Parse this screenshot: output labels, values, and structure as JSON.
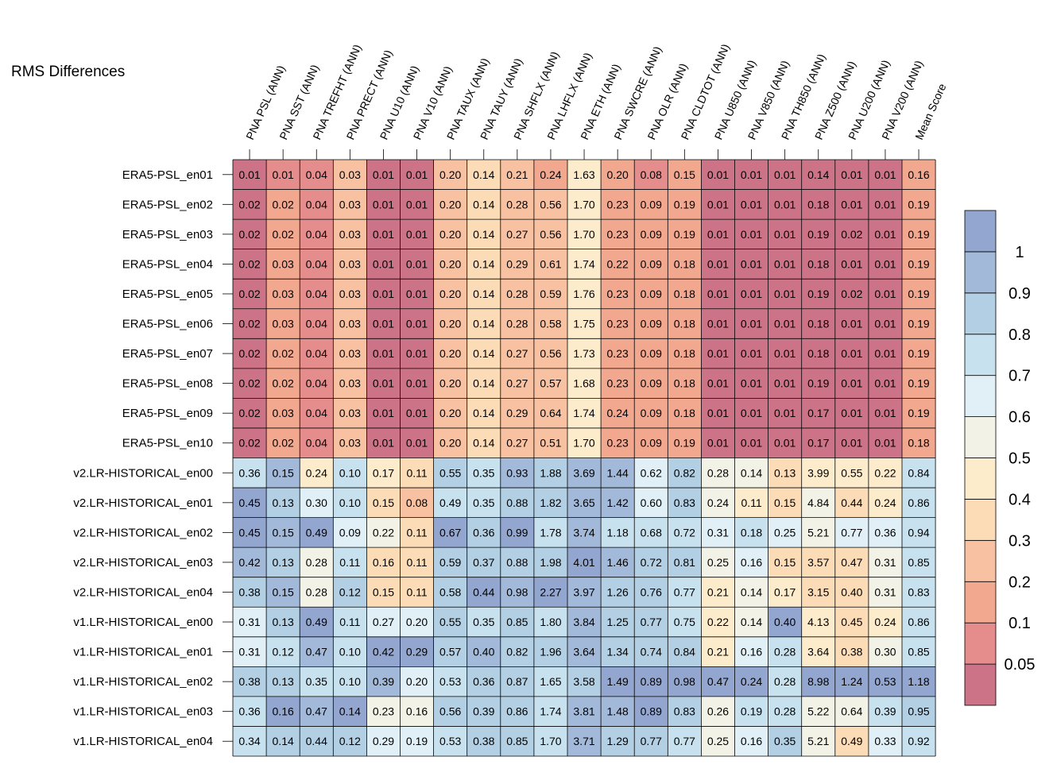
{
  "chart_data": {
    "type": "heatmap",
    "title": "RMS Differences",
    "columns": [
      "PNA PSL (ANN)",
      "PNA SST (ANN)",
      "PNA TREFHT (ANN)",
      "PNA PRECT (ANN)",
      "PNA U10 (ANN)",
      "PNA V10 (ANN)",
      "PNA TAUX (ANN)",
      "PNA TAUY (ANN)",
      "PNA SHFLX (ANN)",
      "PNA LHFLX (ANN)",
      "PNA ETH (ANN)",
      "PNA SWCRE (ANN)",
      "PNA OLR (ANN)",
      "PNA CLDTOT (ANN)",
      "PNA U850 (ANN)",
      "PNA V850 (ANN)",
      "PNA TH850 (ANN)",
      "PNA Z500 (ANN)",
      "PNA U200 (ANN)",
      "PNA V200 (ANN)",
      "Mean Score"
    ],
    "rows": [
      "ERA5-PSL_en01",
      "ERA5-PSL_en02",
      "ERA5-PSL_en03",
      "ERA5-PSL_en04",
      "ERA5-PSL_en05",
      "ERA5-PSL_en06",
      "ERA5-PSL_en07",
      "ERA5-PSL_en08",
      "ERA5-PSL_en09",
      "ERA5-PSL_en10",
      "v2.LR-HISTORICAL_en00",
      "v2.LR-HISTORICAL_en01",
      "v2.LR-HISTORICAL_en02",
      "v2.LR-HISTORICAL_en03",
      "v2.LR-HISTORICAL_en04",
      "v1.LR-HISTORICAL_en00",
      "v1.LR-HISTORICAL_en01",
      "v1.LR-HISTORICAL_en02",
      "v1.LR-HISTORICAL_en03",
      "v1.LR-HISTORICAL_en04"
    ],
    "values": [
      [
        "0.01",
        "0.01",
        "0.04",
        "0.03",
        "0.01",
        "0.01",
        "0.20",
        "0.14",
        "0.21",
        "0.24",
        "1.63",
        "0.20",
        "0.08",
        "0.15",
        "0.01",
        "0.01",
        "0.01",
        "0.14",
        "0.01",
        "0.01",
        "0.16"
      ],
      [
        "0.02",
        "0.02",
        "0.04",
        "0.03",
        "0.01",
        "0.01",
        "0.20",
        "0.14",
        "0.28",
        "0.56",
        "1.70",
        "0.23",
        "0.09",
        "0.19",
        "0.01",
        "0.01",
        "0.01",
        "0.18",
        "0.01",
        "0.01",
        "0.19"
      ],
      [
        "0.02",
        "0.02",
        "0.04",
        "0.03",
        "0.01",
        "0.01",
        "0.20",
        "0.14",
        "0.27",
        "0.56",
        "1.70",
        "0.23",
        "0.09",
        "0.19",
        "0.01",
        "0.01",
        "0.01",
        "0.19",
        "0.02",
        "0.01",
        "0.19"
      ],
      [
        "0.02",
        "0.03",
        "0.04",
        "0.03",
        "0.01",
        "0.01",
        "0.20",
        "0.14",
        "0.29",
        "0.61",
        "1.74",
        "0.22",
        "0.09",
        "0.18",
        "0.01",
        "0.01",
        "0.01",
        "0.18",
        "0.01",
        "0.01",
        "0.19"
      ],
      [
        "0.02",
        "0.03",
        "0.04",
        "0.03",
        "0.01",
        "0.01",
        "0.20",
        "0.14",
        "0.28",
        "0.59",
        "1.76",
        "0.23",
        "0.09",
        "0.18",
        "0.01",
        "0.01",
        "0.01",
        "0.19",
        "0.02",
        "0.01",
        "0.19"
      ],
      [
        "0.02",
        "0.03",
        "0.04",
        "0.03",
        "0.01",
        "0.01",
        "0.20",
        "0.14",
        "0.28",
        "0.58",
        "1.75",
        "0.23",
        "0.09",
        "0.18",
        "0.01",
        "0.01",
        "0.01",
        "0.18",
        "0.01",
        "0.01",
        "0.19"
      ],
      [
        "0.02",
        "0.02",
        "0.04",
        "0.03",
        "0.01",
        "0.01",
        "0.20",
        "0.14",
        "0.27",
        "0.56",
        "1.73",
        "0.23",
        "0.09",
        "0.18",
        "0.01",
        "0.01",
        "0.01",
        "0.18",
        "0.01",
        "0.01",
        "0.19"
      ],
      [
        "0.02",
        "0.02",
        "0.04",
        "0.03",
        "0.01",
        "0.01",
        "0.20",
        "0.14",
        "0.27",
        "0.57",
        "1.68",
        "0.23",
        "0.09",
        "0.18",
        "0.01",
        "0.01",
        "0.01",
        "0.19",
        "0.01",
        "0.01",
        "0.19"
      ],
      [
        "0.02",
        "0.03",
        "0.04",
        "0.03",
        "0.01",
        "0.01",
        "0.20",
        "0.14",
        "0.29",
        "0.64",
        "1.74",
        "0.24",
        "0.09",
        "0.18",
        "0.01",
        "0.01",
        "0.01",
        "0.17",
        "0.01",
        "0.01",
        "0.19"
      ],
      [
        "0.02",
        "0.02",
        "0.04",
        "0.03",
        "0.01",
        "0.01",
        "0.20",
        "0.14",
        "0.27",
        "0.51",
        "1.70",
        "0.23",
        "0.09",
        "0.19",
        "0.01",
        "0.01",
        "0.01",
        "0.17",
        "0.01",
        "0.01",
        "0.18"
      ],
      [
        "0.36",
        "0.15",
        "0.24",
        "0.10",
        "0.17",
        "0.11",
        "0.55",
        "0.35",
        "0.93",
        "1.88",
        "3.69",
        "1.44",
        "0.62",
        "0.82",
        "0.28",
        "0.14",
        "0.13",
        "3.99",
        "0.55",
        "0.22",
        "0.84"
      ],
      [
        "0.45",
        "0.13",
        "0.30",
        "0.10",
        "0.15",
        "0.08",
        "0.49",
        "0.35",
        "0.88",
        "1.82",
        "3.65",
        "1.42",
        "0.60",
        "0.83",
        "0.24",
        "0.11",
        "0.15",
        "4.84",
        "0.44",
        "0.24",
        "0.86"
      ],
      [
        "0.45",
        "0.15",
        "0.49",
        "0.09",
        "0.22",
        "0.11",
        "0.67",
        "0.36",
        "0.99",
        "1.78",
        "3.74",
        "1.18",
        "0.68",
        "0.72",
        "0.31",
        "0.18",
        "0.25",
        "5.21",
        "0.77",
        "0.36",
        "0.94"
      ],
      [
        "0.42",
        "0.13",
        "0.28",
        "0.11",
        "0.16",
        "0.11",
        "0.59",
        "0.37",
        "0.88",
        "1.98",
        "4.01",
        "1.46",
        "0.72",
        "0.81",
        "0.25",
        "0.16",
        "0.15",
        "3.57",
        "0.47",
        "0.31",
        "0.85"
      ],
      [
        "0.38",
        "0.15",
        "0.28",
        "0.12",
        "0.15",
        "0.11",
        "0.58",
        "0.44",
        "0.98",
        "2.27",
        "3.97",
        "1.26",
        "0.76",
        "0.77",
        "0.21",
        "0.14",
        "0.17",
        "3.15",
        "0.40",
        "0.31",
        "0.83"
      ],
      [
        "0.31",
        "0.13",
        "0.49",
        "0.11",
        "0.27",
        "0.20",
        "0.55",
        "0.35",
        "0.85",
        "1.80",
        "3.84",
        "1.25",
        "0.77",
        "0.75",
        "0.22",
        "0.14",
        "0.40",
        "4.13",
        "0.45",
        "0.24",
        "0.86"
      ],
      [
        "0.31",
        "0.12",
        "0.47",
        "0.10",
        "0.42",
        "0.29",
        "0.57",
        "0.40",
        "0.82",
        "1.96",
        "3.64",
        "1.34",
        "0.74",
        "0.84",
        "0.21",
        "0.16",
        "0.28",
        "3.64",
        "0.38",
        "0.30",
        "0.85"
      ],
      [
        "0.38",
        "0.13",
        "0.35",
        "0.10",
        "0.39",
        "0.20",
        "0.53",
        "0.36",
        "0.87",
        "1.65",
        "3.58",
        "1.49",
        "0.89",
        "0.98",
        "0.47",
        "0.24",
        "0.28",
        "8.98",
        "1.24",
        "0.53",
        "1.18"
      ],
      [
        "0.36",
        "0.16",
        "0.47",
        "0.14",
        "0.23",
        "0.16",
        "0.56",
        "0.39",
        "0.86",
        "1.74",
        "3.81",
        "1.48",
        "0.89",
        "0.83",
        "0.26",
        "0.19",
        "0.28",
        "5.22",
        "0.64",
        "0.39",
        "0.95"
      ],
      [
        "0.34",
        "0.14",
        "0.44",
        "0.12",
        "0.29",
        "0.19",
        "0.53",
        "0.38",
        "0.85",
        "1.70",
        "3.71",
        "1.29",
        "0.77",
        "0.77",
        "0.25",
        "0.16",
        "0.35",
        "5.21",
        "0.49",
        "0.33",
        "0.92"
      ]
    ],
    "colorbar": {
      "ticks": [
        "1",
        "0.9",
        "0.8",
        "0.7",
        "0.6",
        "0.5",
        "0.4",
        "0.3",
        "0.2",
        "0.1",
        "0.05"
      ],
      "levels": [
        0.05,
        0.1,
        0.2,
        0.3,
        0.4,
        0.5,
        0.6,
        0.7,
        0.8,
        0.9,
        1
      ],
      "colors": [
        "#cc7387",
        "#e58c8c",
        "#f2a78f",
        "#f8c2a2",
        "#fcdcb7",
        "#fdeccb",
        "#f3f2e7",
        "#e1f0f6",
        "#c7e2ee",
        "#b2cfe3",
        "#a2b9d9",
        "#93a6cf"
      ]
    }
  }
}
